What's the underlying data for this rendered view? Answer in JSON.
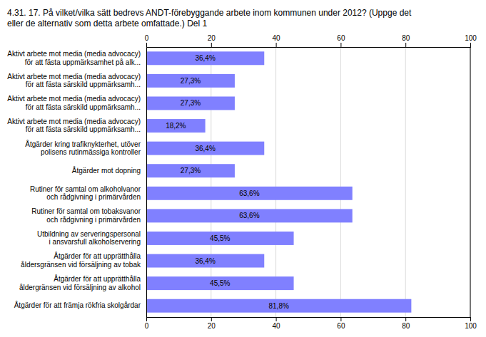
{
  "chart_data": {
    "type": "bar",
    "orientation": "horizontal",
    "title": "4.31. 17. På vilket/vilka sätt bedrevs ANDT-förebyggande arbete inom kommunen under 2012? (Uppge det\neller de alternativ som detta arbete omfattade.) Del 1",
    "categories": [
      "Aktivt arbete mot media (media advocacy)\nför att fästa uppmärksamhet på alk...",
      "Aktivt arbete mot media (media advocacy)\nför att fästa särskild uppmärksamh...",
      "Aktivt arbete mot media (media advocacy)\nför att fästa särskild uppmärksamh...",
      "Aktivt arbete mot media (media advocacy)\nför att fästa särskild uppmärksamh...",
      "Åtgärder kring trafiknykterhet, utöver\npolisens rutinmässiga kontroller",
      "Åtgärder mot dopning",
      "Rutiner för samtal om alkoholvanor\noch rådgivning i primärvården",
      "Rutiner för samtal om tobaksvanor\noch rådgivning i primärvården",
      "Utbildning av serveringspersonal\ni ansvarsfull alkoholservering",
      "Åtgärder för att upprätthålla\nåldersgränsen vid försäljning av tobak",
      "Åtgärder för att upprätthålla\nåldergränsen vid försäljning av alkohol",
      "Åtgärder för att främja rökfria skolgårdar"
    ],
    "values": [
      36.4,
      27.3,
      27.3,
      18.2,
      36.4,
      27.3,
      63.6,
      63.6,
      45.5,
      36.4,
      45.5,
      81.8
    ],
    "value_labels": [
      "36,4%",
      "27,3%",
      "27,3%",
      "18,2%",
      "36,4%",
      "27,3%",
      "63,6%",
      "63,6%",
      "45,5%",
      "36,4%",
      "45,5%",
      "81,8%"
    ],
    "data_labels": true,
    "color": "#8080ff",
    "xlim": [
      0,
      100
    ],
    "xticks": [
      0,
      20,
      40,
      60,
      80,
      100
    ],
    "grid": true
  }
}
